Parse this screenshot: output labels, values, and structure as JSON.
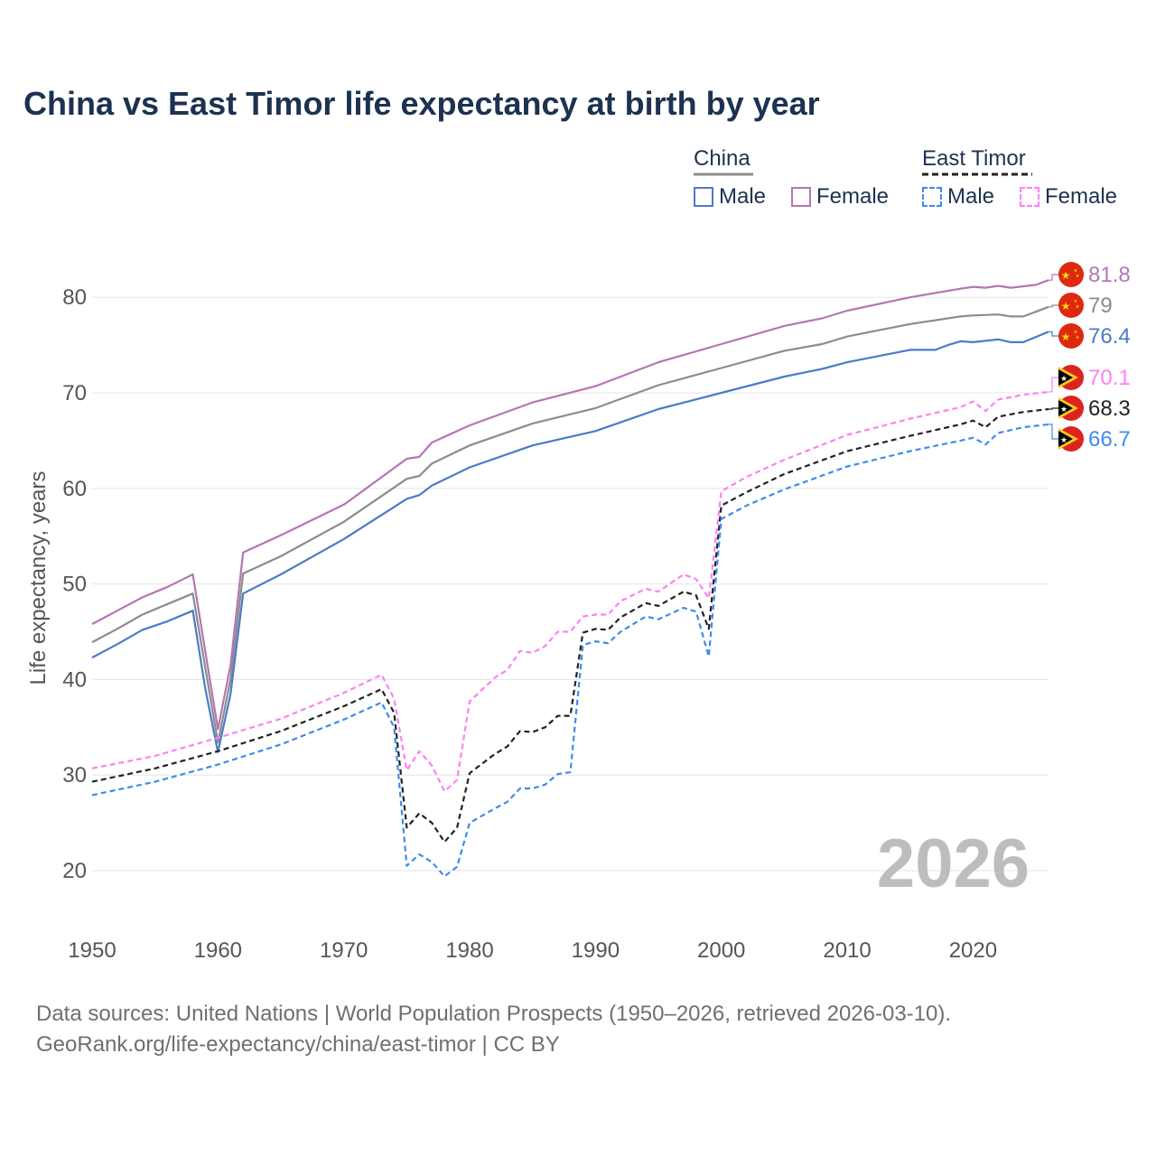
{
  "title": "China vs East Timor life expectancy at birth by year",
  "legend": {
    "groups": [
      {
        "name": "China",
        "line_color": "#8c8c8c",
        "dashed": false,
        "items": [
          {
            "label": "Male",
            "color": "#4a7cc4"
          },
          {
            "label": "Female",
            "color": "#b476b4"
          }
        ]
      },
      {
        "name": "East Timor",
        "line_color": "#222222",
        "dashed": true,
        "items": [
          {
            "label": "Male",
            "color": "#3d8bef"
          },
          {
            "label": "Female",
            "color": "#ff7ff5"
          }
        ]
      }
    ]
  },
  "year_watermark": "2026",
  "footer": {
    "line1": "Data sources: United Nations | World Population Prospects (1950–2026, retrieved 2026-03-10).",
    "line2": "GeoRank.org/life-expectancy/china/east-timor | CC BY"
  },
  "chart_data": {
    "type": "line",
    "title": "China vs East Timor life expectancy at birth by year",
    "xlabel": "",
    "ylabel": "Life expectancy, years",
    "xlim": [
      1950,
      2026
    ],
    "ylim": [
      15,
      85
    ],
    "x_ticks": [
      1950,
      1960,
      1970,
      1980,
      1990,
      2000,
      2010,
      2020
    ],
    "y_ticks": [
      20,
      30,
      40,
      50,
      60,
      70,
      80
    ],
    "grid": true,
    "series": [
      {
        "name": "China Female",
        "country": "China",
        "sex": "Female",
        "color": "#b476b4",
        "dashed": false,
        "end_label": "81.8",
        "points": [
          [
            1950,
            45.8
          ],
          [
            1952,
            47.2
          ],
          [
            1954,
            48.6
          ],
          [
            1956,
            49.7
          ],
          [
            1958,
            51.0
          ],
          [
            1960,
            34.8
          ],
          [
            1961,
            41.5
          ],
          [
            1962,
            53.3
          ],
          [
            1965,
            55.1
          ],
          [
            1970,
            58.3
          ],
          [
            1975,
            63.1
          ],
          [
            1976,
            63.3
          ],
          [
            1977,
            64.8
          ],
          [
            1980,
            66.6
          ],
          [
            1985,
            69.0
          ],
          [
            1990,
            70.7
          ],
          [
            1995,
            73.2
          ],
          [
            2000,
            75.1
          ],
          [
            2005,
            77.0
          ],
          [
            2008,
            77.8
          ],
          [
            2010,
            78.6
          ],
          [
            2015,
            80.0
          ],
          [
            2019,
            80.9
          ],
          [
            2020,
            81.1
          ],
          [
            2021,
            81.0
          ],
          [
            2022,
            81.2
          ],
          [
            2023,
            81.0
          ],
          [
            2025,
            81.3
          ],
          [
            2026,
            81.8
          ]
        ]
      },
      {
        "name": "China Both sexes",
        "country": "China",
        "sex": "Both",
        "color": "#8c8c8c",
        "dashed": false,
        "end_label": "79",
        "points": [
          [
            1950,
            43.9
          ],
          [
            1952,
            45.3
          ],
          [
            1954,
            46.8
          ],
          [
            1956,
            47.9
          ],
          [
            1958,
            49.0
          ],
          [
            1960,
            33.4
          ],
          [
            1961,
            40.0
          ],
          [
            1962,
            51.1
          ],
          [
            1965,
            52.9
          ],
          [
            1970,
            56.5
          ],
          [
            1975,
            61.0
          ],
          [
            1976,
            61.3
          ],
          [
            1977,
            62.6
          ],
          [
            1980,
            64.5
          ],
          [
            1985,
            66.8
          ],
          [
            1990,
            68.4
          ],
          [
            1995,
            70.8
          ],
          [
            2000,
            72.6
          ],
          [
            2005,
            74.4
          ],
          [
            2008,
            75.1
          ],
          [
            2010,
            75.9
          ],
          [
            2015,
            77.2
          ],
          [
            2019,
            78.0
          ],
          [
            2020,
            78.1
          ],
          [
            2022,
            78.2
          ],
          [
            2023,
            78.0
          ],
          [
            2024,
            78.0
          ],
          [
            2026,
            79.0
          ]
        ]
      },
      {
        "name": "China Male",
        "country": "China",
        "sex": "Male",
        "color": "#4a7cc4",
        "dashed": false,
        "end_label": "76.4",
        "points": [
          [
            1950,
            42.3
          ],
          [
            1952,
            43.7
          ],
          [
            1954,
            45.2
          ],
          [
            1956,
            46.1
          ],
          [
            1958,
            47.2
          ],
          [
            1959,
            39.0
          ],
          [
            1960,
            32.4
          ],
          [
            1961,
            38.5
          ],
          [
            1962,
            49.0
          ],
          [
            1965,
            51.0
          ],
          [
            1970,
            54.7
          ],
          [
            1975,
            58.9
          ],
          [
            1976,
            59.3
          ],
          [
            1977,
            60.3
          ],
          [
            1980,
            62.2
          ],
          [
            1985,
            64.5
          ],
          [
            1990,
            66.0
          ],
          [
            1995,
            68.3
          ],
          [
            2000,
            70.0
          ],
          [
            2005,
            71.7
          ],
          [
            2008,
            72.5
          ],
          [
            2010,
            73.2
          ],
          [
            2015,
            74.5
          ],
          [
            2017,
            74.5
          ],
          [
            2018,
            75.0
          ],
          [
            2019,
            75.4
          ],
          [
            2020,
            75.3
          ],
          [
            2022,
            75.6
          ],
          [
            2023,
            75.3
          ],
          [
            2024,
            75.3
          ],
          [
            2026,
            76.4
          ]
        ]
      },
      {
        "name": "East Timor Female",
        "country": "East Timor",
        "sex": "Female",
        "color": "#ff7ff5",
        "dashed": true,
        "end_label": "70.1",
        "points": [
          [
            1950,
            30.7
          ],
          [
            1955,
            32.0
          ],
          [
            1960,
            33.9
          ],
          [
            1965,
            35.9
          ],
          [
            1970,
            38.6
          ],
          [
            1973,
            40.5
          ],
          [
            1974,
            38.0
          ],
          [
            1975,
            30.5
          ],
          [
            1976,
            32.5
          ],
          [
            1977,
            31.0
          ],
          [
            1978,
            28.3
          ],
          [
            1979,
            29.5
          ],
          [
            1980,
            37.7
          ],
          [
            1982,
            40.2
          ],
          [
            1983,
            41.0
          ],
          [
            1984,
            43.0
          ],
          [
            1985,
            42.8
          ],
          [
            1986,
            43.5
          ],
          [
            1987,
            45.0
          ],
          [
            1988,
            45.0
          ],
          [
            1989,
            46.6
          ],
          [
            1990,
            46.8
          ],
          [
            1991,
            46.8
          ],
          [
            1992,
            48.2
          ],
          [
            1994,
            49.5
          ],
          [
            1995,
            49.2
          ],
          [
            1997,
            51.0
          ],
          [
            1998,
            50.5
          ],
          [
            1999,
            48.5
          ],
          [
            2000,
            59.7
          ],
          [
            2002,
            61.2
          ],
          [
            2005,
            63.0
          ],
          [
            2010,
            65.6
          ],
          [
            2015,
            67.3
          ],
          [
            2019,
            68.5
          ],
          [
            2020,
            69.1
          ],
          [
            2021,
            68.1
          ],
          [
            2022,
            69.3
          ],
          [
            2024,
            69.8
          ],
          [
            2026,
            70.1
          ]
        ]
      },
      {
        "name": "East Timor Both sexes",
        "country": "East Timor",
        "sex": "Both",
        "color": "#222222",
        "dashed": true,
        "end_label": "68.3",
        "points": [
          [
            1950,
            29.3
          ],
          [
            1955,
            30.7
          ],
          [
            1960,
            32.5
          ],
          [
            1965,
            34.6
          ],
          [
            1970,
            37.2
          ],
          [
            1973,
            39.0
          ],
          [
            1974,
            36.5
          ],
          [
            1975,
            24.5
          ],
          [
            1976,
            26.0
          ],
          [
            1977,
            25.0
          ],
          [
            1978,
            23.0
          ],
          [
            1979,
            24.5
          ],
          [
            1980,
            30.2
          ],
          [
            1982,
            32.2
          ],
          [
            1983,
            33.0
          ],
          [
            1984,
            34.6
          ],
          [
            1985,
            34.5
          ],
          [
            1986,
            35.0
          ],
          [
            1987,
            36.2
          ],
          [
            1988,
            36.2
          ],
          [
            1989,
            44.9
          ],
          [
            1990,
            45.3
          ],
          [
            1991,
            45.2
          ],
          [
            1992,
            46.5
          ],
          [
            1994,
            48.0
          ],
          [
            1995,
            47.7
          ],
          [
            1997,
            49.2
          ],
          [
            1998,
            48.8
          ],
          [
            1999,
            45.3
          ],
          [
            2000,
            58.2
          ],
          [
            2002,
            59.6
          ],
          [
            2005,
            61.5
          ],
          [
            2010,
            63.9
          ],
          [
            2015,
            65.5
          ],
          [
            2019,
            66.7
          ],
          [
            2020,
            67.1
          ],
          [
            2021,
            66.4
          ],
          [
            2022,
            67.5
          ],
          [
            2024,
            68.0
          ],
          [
            2026,
            68.3
          ]
        ]
      },
      {
        "name": "East Timor Male",
        "country": "East Timor",
        "sex": "Male",
        "color": "#3d8bef",
        "dashed": true,
        "end_label": "66.7",
        "points": [
          [
            1950,
            27.9
          ],
          [
            1955,
            29.3
          ],
          [
            1960,
            31.1
          ],
          [
            1965,
            33.2
          ],
          [
            1970,
            35.8
          ],
          [
            1973,
            37.6
          ],
          [
            1974,
            35.0
          ],
          [
            1975,
            20.5
          ],
          [
            1976,
            21.7
          ],
          [
            1977,
            20.9
          ],
          [
            1978,
            19.4
          ],
          [
            1979,
            20.4
          ],
          [
            1980,
            25.0
          ],
          [
            1982,
            26.5
          ],
          [
            1983,
            27.2
          ],
          [
            1984,
            28.6
          ],
          [
            1985,
            28.6
          ],
          [
            1986,
            29.0
          ],
          [
            1987,
            30.1
          ],
          [
            1988,
            30.3
          ],
          [
            1989,
            43.6
          ],
          [
            1990,
            44.0
          ],
          [
            1991,
            43.8
          ],
          [
            1992,
            45.0
          ],
          [
            1994,
            46.6
          ],
          [
            1995,
            46.3
          ],
          [
            1997,
            47.5
          ],
          [
            1998,
            47.1
          ],
          [
            1999,
            42.4
          ],
          [
            2000,
            56.8
          ],
          [
            2002,
            58.2
          ],
          [
            2005,
            59.9
          ],
          [
            2010,
            62.3
          ],
          [
            2015,
            63.9
          ],
          [
            2019,
            65.0
          ],
          [
            2020,
            65.3
          ],
          [
            2021,
            64.6
          ],
          [
            2022,
            65.8
          ],
          [
            2024,
            66.4
          ],
          [
            2026,
            66.7
          ]
        ]
      }
    ]
  }
}
